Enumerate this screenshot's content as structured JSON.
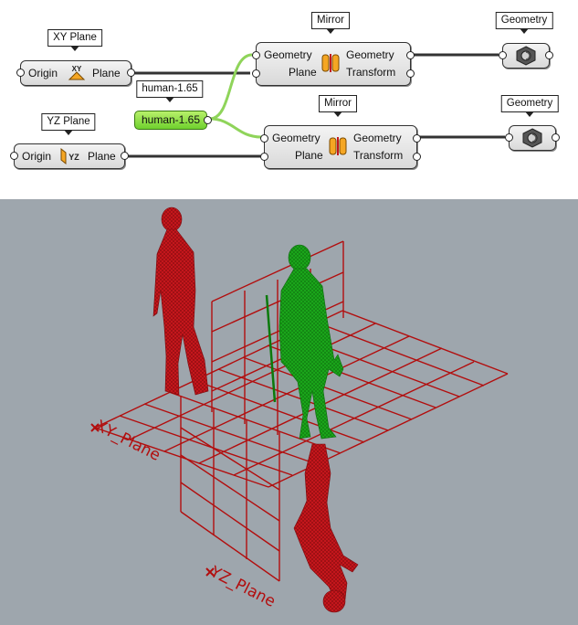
{
  "canvas": {
    "labels": {
      "xy_plane": "XY Plane",
      "yz_plane": "YZ Plane",
      "human": "human-1.65",
      "mirror_top": "Mirror",
      "mirror_bottom": "Mirror",
      "geometry_top": "Geometry",
      "geometry_bottom": "Geometry"
    },
    "xy_node": {
      "input": "Origin",
      "output": "Plane",
      "icon": "xy-plane-icon",
      "icon_text": "XY"
    },
    "yz_node": {
      "input": "Origin",
      "output": "Plane",
      "icon": "yz-plane-icon",
      "icon_text": "YZ"
    },
    "human_panel": {
      "value": "human-1.65"
    },
    "mirror_top": {
      "in1": "Geometry",
      "in2": "Plane",
      "out1": "Geometry",
      "out2": "Transform",
      "icon": "mirror-icon"
    },
    "mirror_bottom": {
      "in1": "Geometry",
      "in2": "Plane",
      "out1": "Geometry",
      "out2": "Transform",
      "icon": "mirror-icon"
    },
    "geometry_top": {
      "icon": "geometry-param-icon"
    },
    "geometry_bottom": {
      "icon": "geometry-param-icon"
    }
  },
  "viewport": {
    "xy_plane_label": "XY_Plane",
    "yz_plane_label": "YZ_Plane",
    "colors": {
      "background": "#9ea6ad",
      "mirrored": "#c4161c",
      "preview": "#1aa51a"
    }
  }
}
